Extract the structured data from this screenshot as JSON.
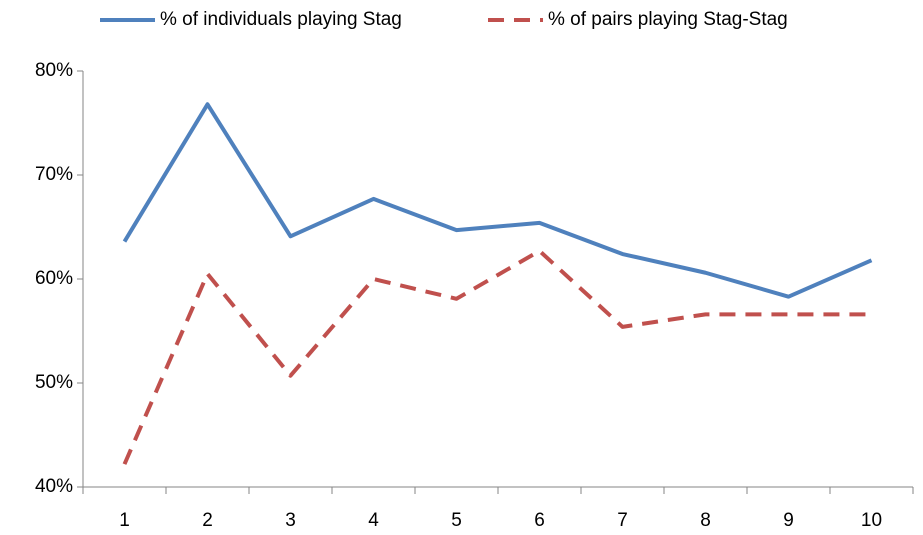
{
  "chart_data": {
    "type": "line",
    "categories": [
      "1",
      "2",
      "3",
      "4",
      "5",
      "6",
      "7",
      "8",
      "9",
      "10"
    ],
    "series": [
      {
        "name": "% of individuals playing Stag",
        "color": "#4f81bd",
        "line_style": "solid",
        "values": [
          63.6,
          76.8,
          64.1,
          67.7,
          64.7,
          65.4,
          62.4,
          60.6,
          58.3,
          61.8
        ]
      },
      {
        "name": "% of pairs playing Stag-Stag",
        "color": "#c0504d",
        "line_style": "dashed",
        "values": [
          42.2,
          60.5,
          50.7,
          60.0,
          58.1,
          62.7,
          55.4,
          56.6,
          56.6,
          56.6
        ]
      }
    ],
    "ylim": [
      40,
      80
    ],
    "yticks": [
      {
        "value": 40,
        "label": "40%"
      },
      {
        "value": 50,
        "label": "50%"
      },
      {
        "value": 60,
        "label": "60%"
      },
      {
        "value": 70,
        "label": "70%"
      },
      {
        "value": 80,
        "label": "80%"
      }
    ],
    "grid": false,
    "legend": "top"
  }
}
